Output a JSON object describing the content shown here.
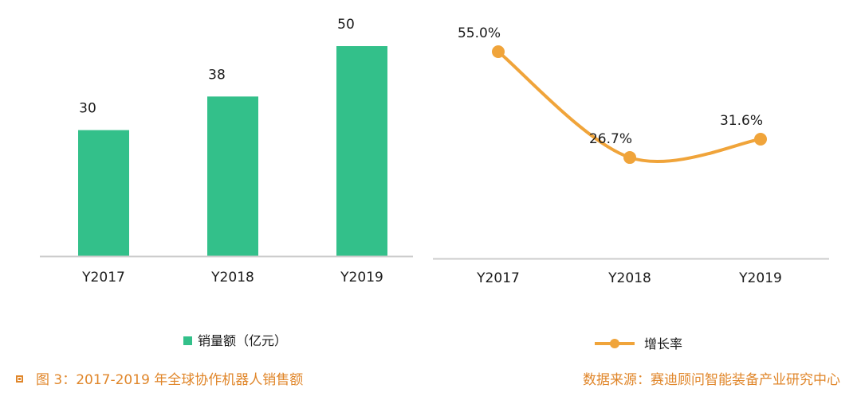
{
  "chart_data": [
    {
      "type": "bar",
      "categories": [
        "Y2017",
        "Y2018",
        "Y2019"
      ],
      "series": [
        {
          "name": "销量额（亿元）",
          "values": [
            30,
            38,
            50
          ]
        }
      ],
      "data_labels": [
        "30",
        "38",
        "50"
      ],
      "ylim": [
        0,
        50
      ],
      "grid": false,
      "legend": "bottom",
      "colors": {
        "bar": "#33c08a",
        "axis": "#cccccc",
        "text": "#1a1a1a"
      }
    },
    {
      "type": "line",
      "categories": [
        "Y2017",
        "Y2018",
        "Y2019"
      ],
      "series": [
        {
          "name": "增长率",
          "values": [
            55.0,
            26.7,
            31.6
          ]
        }
      ],
      "data_labels": [
        "55.0%",
        "26.7%",
        "31.6%"
      ],
      "ylim": [
        0,
        70
      ],
      "grid": false,
      "legend": "bottom",
      "smooth": true,
      "colors": {
        "line": "#f0a43a",
        "axis": "#cccccc",
        "text": "#1a1a1a"
      }
    }
  ],
  "caption": {
    "figure_title": "图 3：2017-2019 年全球协作机器人销售额",
    "source": "数据来源：赛迪顾问智能装备产业研究中心"
  },
  "colors": {
    "caption": "#e0862a"
  }
}
